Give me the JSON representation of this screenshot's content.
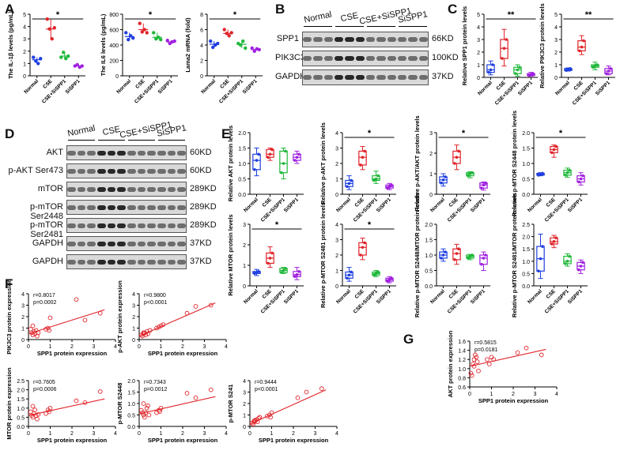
{
  "panels": {
    "A": "A",
    "B": "B",
    "C": "C",
    "D": "D",
    "E": "E",
    "F": "F",
    "G": "G"
  },
  "colors": {
    "Normal": "#1f3fe0",
    "CSE": "#e0242a",
    "CSE+SiSPP1": "#1fb83a",
    "SiSPP1": "#a020e0",
    "regression": "#e0242a",
    "blot_bg": "#d9d9d9"
  },
  "groups": [
    "Normal",
    "CSE",
    "CSE+SiSPP1",
    "SiSPP1"
  ],
  "panel_B": {
    "lanes": [
      "Normal",
      "CSE",
      "CSE+SiSPP1",
      "SiSPP1"
    ],
    "rows": [
      {
        "label": "SPP1",
        "kd": "66KD"
      },
      {
        "label": "PIK3C3",
        "kd": "100KD"
      },
      {
        "label": "GAPDH",
        "kd": "37KD"
      }
    ]
  },
  "panel_D": {
    "lanes": [
      "Normal",
      "CSE",
      "CSE+SiSPP1",
      "SiSPP1"
    ],
    "rows": [
      {
        "label": "AKT",
        "kd": "60KD"
      },
      {
        "label": "p-AKT Ser473",
        "kd": "60KD"
      },
      {
        "label": "mTOR",
        "kd": "289KD"
      },
      {
        "label": "p-mTOR Ser2448",
        "kd": "289KD"
      },
      {
        "label": "p-mTOR Ser2481",
        "kd": "289KD"
      },
      {
        "label": "GAPDH",
        "kd": "37KD"
      },
      {
        "label": "GAPDH",
        "kd": "37KD"
      }
    ]
  },
  "chart_data": [
    {
      "id": "A1",
      "type": "scatter",
      "ylabel": "The IL-1β levels (pg/mL)",
      "ylim": [
        0,
        5
      ],
      "yticks": [
        "0",
        "1",
        "2",
        "3",
        "4",
        "5"
      ],
      "categories": [
        "Normal",
        "CSE",
        "CSE+SiSPP1",
        "SiSPP1"
      ],
      "points": [
        [
          1.5,
          1.2,
          1.0,
          1.4
        ],
        [
          4.6,
          3.8,
          3.0,
          3.9
        ],
        [
          1.5,
          1.9,
          1.4,
          1.6
        ],
        [
          0.8,
          0.9,
          0.7,
          0.8
        ]
      ],
      "mean": [
        1.3,
        3.8,
        1.6,
        0.8
      ],
      "sig": "*",
      "sig_span": [
        0,
        3
      ]
    },
    {
      "id": "A2",
      "type": "scatter",
      "ylabel": "The IL6 levels (pg/mL)",
      "ylim": [
        0,
        800
      ],
      "yticks": [
        "0",
        "200",
        "400",
        "600",
        "800"
      ],
      "categories": [
        "Normal",
        "CSE",
        "CSE+SiSPP1",
        "SiSPP1"
      ],
      "points": [
        [
          560,
          470,
          520,
          490
        ],
        [
          680,
          570,
          600,
          560
        ],
        [
          560,
          480,
          500,
          470
        ],
        [
          460,
          420,
          440,
          450
        ]
      ],
      "mean": [
        510,
        600,
        500,
        440
      ],
      "sig": "*",
      "sig_span": [
        0,
        3
      ]
    },
    {
      "id": "A3",
      "type": "scatter",
      "ylabel": "Lama2 mRNA (fold)",
      "ylim": [
        0,
        8
      ],
      "yticks": [
        "0",
        "2",
        "4",
        "6",
        "8"
      ],
      "categories": [
        "Normal",
        "CSE",
        "CSE+SiSPP1",
        "SiSPP1"
      ],
      "points": [
        [
          4.5,
          3.7,
          4.0,
          4.2
        ],
        [
          6.0,
          5.5,
          5.2,
          5.6
        ],
        [
          4.2,
          4.0,
          4.5,
          3.6
        ],
        [
          3.6,
          3.2,
          3.5,
          3.4
        ]
      ],
      "mean": [
        4.1,
        5.5,
        4.1,
        3.4
      ],
      "sig": "*",
      "sig_span": [
        0,
        3
      ]
    },
    {
      "id": "C1",
      "type": "box",
      "ylabel": "Relative SPP1 protein levels",
      "ylim": [
        0,
        5
      ],
      "yticks": [
        "0",
        "1",
        "2",
        "3",
        "4",
        "5"
      ],
      "categories": [
        "Normal",
        "CSE",
        "CSE+SiSPP1",
        "SiSPP1"
      ],
      "boxes": [
        [
          0.2,
          0.4,
          0.6,
          1.0,
          1.3
        ],
        [
          0.9,
          1.5,
          2.3,
          3.0,
          3.8
        ],
        [
          0.1,
          0.3,
          0.6,
          0.8,
          1.0
        ],
        [
          0.1,
          0.15,
          0.2,
          0.3,
          0.4
        ]
      ],
      "sig": "**",
      "sig_span": [
        0,
        3
      ]
    },
    {
      "id": "C2",
      "type": "box",
      "ylabel": "Relative PIK3C3 protein levels",
      "ylim": [
        0,
        5
      ],
      "yticks": [
        "0",
        "1",
        "2",
        "3",
        "4",
        "5"
      ],
      "categories": [
        "Normal",
        "CSE",
        "CSE+SiSPP1",
        "SiSPP1"
      ],
      "boxes": [
        [
          0.5,
          0.55,
          0.6,
          0.7,
          0.75
        ],
        [
          1.8,
          2.1,
          2.4,
          2.9,
          3.3
        ],
        [
          0.6,
          0.8,
          0.9,
          1.0,
          1.2
        ],
        [
          0.2,
          0.3,
          0.5,
          0.7,
          0.9
        ]
      ],
      "sig": "**",
      "sig_span": [
        0,
        3
      ]
    },
    {
      "id": "E1",
      "type": "box",
      "ylabel": "Relative AKT protein levels",
      "ylim": [
        0,
        2
      ],
      "yticks": [
        "0.0",
        "0.5",
        "1.0",
        "1.5",
        "2.0"
      ],
      "categories": [
        "Normal",
        "CSE",
        "CSE+SiSPP1",
        "SiSPP1"
      ],
      "boxes": [
        [
          0.6,
          0.8,
          1.1,
          1.3,
          1.5
        ],
        [
          1.1,
          1.2,
          1.3,
          1.45,
          1.5
        ],
        [
          0.5,
          0.7,
          1.0,
          1.4,
          1.5
        ],
        [
          1.0,
          1.1,
          1.2,
          1.3,
          1.4
        ]
      ],
      "sig": "",
      "sig_span": [
        0,
        3
      ]
    },
    {
      "id": "E2",
      "type": "box",
      "ylabel": "Relative p-AKT protein levels",
      "ylim": [
        0,
        4
      ],
      "yticks": [
        "0",
        "1",
        "2",
        "3",
        "4"
      ],
      "categories": [
        "Normal",
        "CSE",
        "CSE+SiSPP1",
        "SiSPP1"
      ],
      "boxes": [
        [
          0.3,
          0.5,
          0.7,
          0.9,
          1.2
        ],
        [
          1.6,
          1.9,
          2.4,
          2.8,
          3.1
        ],
        [
          0.7,
          0.9,
          1.0,
          1.2,
          1.5
        ],
        [
          0.3,
          0.4,
          0.5,
          0.6,
          0.7
        ]
      ],
      "sig": "*",
      "sig_span": [
        0,
        3
      ]
    },
    {
      "id": "E3",
      "type": "box",
      "ylabel": "Relative p-AKT/AKT protein levels",
      "ylim": [
        0,
        3
      ],
      "yticks": [
        "0",
        "1",
        "2",
        "3"
      ],
      "categories": [
        "Normal",
        "CSE",
        "CSE+SiSPP1",
        "SiSPP1"
      ],
      "boxes": [
        [
          0.4,
          0.55,
          0.7,
          0.85,
          1.0
        ],
        [
          1.2,
          1.5,
          1.8,
          2.1,
          2.4
        ],
        [
          0.8,
          0.9,
          1.0,
          1.05,
          1.1
        ],
        [
          0.2,
          0.3,
          0.45,
          0.55,
          0.6
        ]
      ],
      "sig": "*",
      "sig_span": [
        0,
        3
      ]
    },
    {
      "id": "E4",
      "type": "box",
      "ylabel": "Relative p-MTOR S2448 protein levels",
      "ylim": [
        0,
        2
      ],
      "yticks": [
        "0.0",
        "0.5",
        "1.0",
        "1.5",
        "2.0"
      ],
      "categories": [
        "Normal",
        "CSE",
        "CSE+SiSPP1",
        "SiSPP1"
      ],
      "boxes": [
        [
          0.6,
          0.62,
          0.65,
          0.68,
          0.7
        ],
        [
          1.2,
          1.35,
          1.45,
          1.55,
          1.6
        ],
        [
          0.55,
          0.62,
          0.7,
          0.78,
          0.85
        ],
        [
          0.3,
          0.4,
          0.5,
          0.6,
          0.7
        ]
      ],
      "sig": "*",
      "sig_span": [
        0,
        3
      ]
    },
    {
      "id": "E5",
      "type": "box",
      "ylabel": "Relative MTOR protein levels",
      "ylim": [
        0,
        3
      ],
      "yticks": [
        "0",
        "1",
        "2",
        "3"
      ],
      "categories": [
        "Normal",
        "CSE",
        "CSE+SiSPP1",
        "SiSPP1"
      ],
      "boxes": [
        [
          0.5,
          0.6,
          0.65,
          0.7,
          0.8
        ],
        [
          0.9,
          1.1,
          1.35,
          1.6,
          1.9
        ],
        [
          0.6,
          0.65,
          0.75,
          0.85,
          0.9
        ],
        [
          0.3,
          0.45,
          0.55,
          0.7,
          0.9
        ]
      ],
      "sig": "*",
      "sig_span": [
        0,
        3
      ]
    },
    {
      "id": "E6",
      "type": "box",
      "ylabel": "Relative p-MTOR S2481 protein levels",
      "ylim": [
        0,
        4
      ],
      "yticks": [
        "0",
        "1",
        "2",
        "3",
        "4"
      ],
      "categories": [
        "Normal",
        "CSE",
        "CSE+SiSPP1",
        "SiSPP1"
      ],
      "boxes": [
        [
          0.3,
          0.5,
          0.7,
          0.9,
          1.2
        ],
        [
          1.7,
          2.0,
          2.5,
          2.8,
          3.1
        ],
        [
          0.6,
          0.7,
          0.8,
          0.9,
          1.0
        ],
        [
          0.2,
          0.3,
          0.4,
          0.5,
          0.6
        ]
      ],
      "sig": "*",
      "sig_span": [
        0,
        3
      ]
    },
    {
      "id": "E7",
      "type": "box",
      "ylabel": "Relative p-MTOR S2448/MTOR protein levels",
      "ylim": [
        0,
        2
      ],
      "yticks": [
        "0.0",
        "0.5",
        "1.0",
        "1.5",
        "2.0"
      ],
      "categories": [
        "Normal",
        "CSE",
        "CSE+SiSPP1",
        "SiSPP1"
      ],
      "boxes": [
        [
          0.8,
          0.9,
          1.0,
          1.1,
          1.2
        ],
        [
          0.7,
          0.85,
          1.05,
          1.2,
          1.35
        ],
        [
          0.85,
          0.9,
          0.95,
          1.0,
          1.02
        ],
        [
          0.5,
          0.7,
          0.9,
          1.0,
          1.1
        ]
      ],
      "sig": "",
      "sig_span": [
        0,
        3
      ]
    },
    {
      "id": "E8",
      "type": "box",
      "ylabel": "Relative p-MTOR S2481/MTOR protein levels",
      "ylim": [
        0,
        2.5
      ],
      "yticks": [
        "0.0",
        "0.5",
        "1.0",
        "1.5",
        "2.0",
        "2.5"
      ],
      "categories": [
        "Normal",
        "CSE",
        "CSE+SiSPP1",
        "SiSPP1"
      ],
      "boxes": [
        [
          0.3,
          0.6,
          1.1,
          1.6,
          2.1
        ],
        [
          1.55,
          1.7,
          1.8,
          1.95,
          2.05
        ],
        [
          0.8,
          0.9,
          1.0,
          1.2,
          1.3
        ],
        [
          0.5,
          0.65,
          0.8,
          0.95,
          1.05
        ]
      ],
      "sig": "",
      "sig_span": [
        0,
        3
      ]
    },
    {
      "id": "F1",
      "type": "scatter",
      "xlabel": "SPP1 protein expression",
      "ylabel": "PIK3C3 protein expression",
      "xlim": [
        0,
        4
      ],
      "ylim": [
        0,
        4
      ],
      "xticks": [
        "0",
        "1",
        "2",
        "3",
        "4"
      ],
      "yticks": [
        "0",
        "1",
        "2",
        "3",
        "4"
      ],
      "stats": [
        "r=0.8017",
        "p=0.0002"
      ],
      "x": [
        0.1,
        0.15,
        0.2,
        0.25,
        0.3,
        0.35,
        0.4,
        0.45,
        0.8,
        0.9,
        0.95,
        1.0,
        2.2,
        2.6,
        3.3,
        0.2
      ],
      "y": [
        0.9,
        0.6,
        0.4,
        0.7,
        0.5,
        0.8,
        0.3,
        0.6,
        0.9,
        1.0,
        0.8,
        1.9,
        3.5,
        1.7,
        2.3,
        1.2
      ],
      "line": [
        [
          0,
          0.5
        ],
        [
          3.5,
          2.6
        ]
      ]
    },
    {
      "id": "F2",
      "type": "scatter",
      "xlabel": "SPP1 protein expression",
      "ylabel": "p-AKT protein expression",
      "xlim": [
        0,
        4
      ],
      "ylim": [
        0,
        4
      ],
      "xticks": [
        "0",
        "1",
        "2",
        "3",
        "4"
      ],
      "yticks": [
        "0",
        "1",
        "2",
        "3",
        "4"
      ],
      "stats": [
        "r=0.9800",
        "p<0.0001"
      ],
      "x": [
        0.1,
        0.15,
        0.2,
        0.25,
        0.3,
        0.35,
        0.4,
        0.5,
        0.8,
        0.9,
        1.0,
        1.1,
        2.2,
        2.6,
        3.3,
        0.2
      ],
      "y": [
        0.4,
        0.3,
        0.5,
        0.6,
        0.4,
        0.7,
        0.5,
        0.8,
        1.0,
        1.1,
        1.2,
        1.3,
        2.3,
        2.9,
        3.0,
        0.6
      ],
      "line": [
        [
          0,
          0.3
        ],
        [
          3.5,
          3.2
        ]
      ]
    },
    {
      "id": "F3",
      "type": "scatter",
      "xlabel": "SPP1 protein expression",
      "ylabel": "MTOR protein expression",
      "xlim": [
        0,
        4
      ],
      "ylim": [
        0,
        2.5
      ],
      "xticks": [
        "0",
        "1",
        "2",
        "3",
        "4"
      ],
      "yticks": [
        "0.0",
        "0.5",
        "1.0",
        "1.5",
        "2.0",
        "2.5"
      ],
      "stats": [
        "r=0.7605",
        "p=0.0006"
      ],
      "x": [
        0.1,
        0.15,
        0.2,
        0.25,
        0.3,
        0.35,
        0.4,
        0.45,
        0.8,
        0.9,
        0.95,
        1.0,
        2.2,
        2.6,
        3.3,
        0.2
      ],
      "y": [
        0.8,
        0.6,
        0.5,
        0.7,
        0.9,
        0.6,
        0.4,
        0.65,
        0.7,
        0.9,
        0.8,
        1.0,
        1.4,
        1.3,
        1.9,
        1.1
      ],
      "line": [
        [
          0,
          0.6
        ],
        [
          3.5,
          1.5
        ]
      ]
    },
    {
      "id": "F4",
      "type": "scatter",
      "xlabel": "SPP1 protein expression",
      "ylabel": "p-MTOR S2448",
      "xlim": [
        0,
        4
      ],
      "ylim": [
        0,
        2
      ],
      "xticks": [
        "0",
        "1",
        "2",
        "3",
        "4"
      ],
      "yticks": [
        "0.0",
        "0.5",
        "1.0",
        "1.5",
        "2.0"
      ],
      "stats": [
        "r=0.7343",
        "p=0.0012"
      ],
      "x": [
        0.1,
        0.15,
        0.2,
        0.25,
        0.3,
        0.35,
        0.4,
        0.45,
        0.8,
        0.9,
        0.95,
        1.0,
        2.2,
        2.6,
        3.3,
        0.2
      ],
      "y": [
        0.7,
        0.6,
        0.5,
        0.4,
        0.6,
        0.8,
        0.9,
        0.5,
        0.6,
        0.7,
        0.65,
        0.8,
        1.45,
        1.25,
        1.6,
        1.0
      ],
      "line": [
        [
          0,
          0.55
        ],
        [
          3.5,
          1.3
        ]
      ]
    },
    {
      "id": "F5",
      "type": "scatter",
      "xlabel": "SPP1 protein expression",
      "ylabel": "p-MTOR S241",
      "xlim": [
        0,
        4
      ],
      "ylim": [
        0,
        4
      ],
      "xticks": [
        "0",
        "1",
        "2",
        "3",
        "4"
      ],
      "yticks": [
        "0",
        "1",
        "2",
        "3",
        "4"
      ],
      "stats": [
        "r=0.9444",
        "p<0.0001"
      ],
      "x": [
        0.1,
        0.15,
        0.2,
        0.25,
        0.3,
        0.35,
        0.4,
        0.45,
        0.8,
        0.9,
        0.95,
        1.0,
        2.2,
        2.6,
        3.3,
        0.2
      ],
      "y": [
        0.3,
        0.2,
        0.4,
        0.5,
        0.6,
        0.4,
        0.7,
        0.8,
        0.9,
        1.0,
        0.8,
        1.2,
        2.5,
        3.0,
        3.3,
        0.5
      ],
      "line": [
        [
          0,
          0.2
        ],
        [
          3.5,
          3.2
        ]
      ]
    },
    {
      "id": "G",
      "type": "scatter",
      "xlabel": "SPP1 protein expression",
      "ylabel": "AKT protein expression",
      "xlim": [
        0,
        4
      ],
      "ylim": [
        0.6,
        1.6
      ],
      "xticks": [
        "0",
        "1",
        "2",
        "3",
        "4"
      ],
      "yticks": [
        "0.6",
        "0.8",
        "1.0",
        "1.2",
        "1.4",
        "1.6"
      ],
      "stats": [
        "r=0.5815",
        "p=0.0181"
      ],
      "x": [
        0.05,
        0.1,
        0.15,
        0.2,
        0.25,
        0.3,
        0.35,
        0.4,
        0.8,
        0.9,
        1.0,
        1.1,
        2.2,
        2.6,
        3.3,
        0.2
      ],
      "y": [
        0.9,
        0.85,
        1.1,
        1.2,
        1.3,
        1.25,
        1.15,
        0.95,
        1.2,
        1.1,
        1.25,
        1.2,
        1.35,
        1.45,
        1.3,
        1.05
      ],
      "line": [
        [
          0,
          1.05
        ],
        [
          3.5,
          1.42
        ]
      ]
    }
  ]
}
